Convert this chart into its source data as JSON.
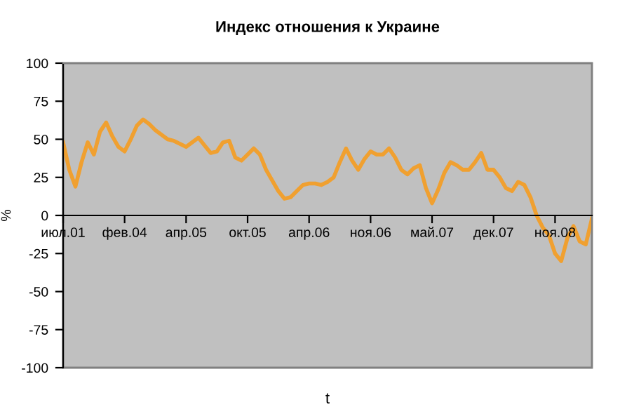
{
  "chart_data": {
    "type": "line",
    "title": "Индекс отношения к Украине",
    "xlabel": "t",
    "ylabel": "%",
    "categories": [
      "июл.01",
      null,
      null,
      null,
      null,
      null,
      null,
      null,
      null,
      null,
      "фев.04",
      null,
      null,
      null,
      null,
      null,
      null,
      null,
      null,
      null,
      "апр.05",
      null,
      null,
      null,
      null,
      null,
      null,
      null,
      null,
      null,
      "окт.05",
      null,
      null,
      null,
      null,
      null,
      null,
      null,
      null,
      null,
      "апр.06",
      null,
      null,
      null,
      null,
      null,
      null,
      null,
      null,
      null,
      "ноя.06",
      null,
      null,
      null,
      null,
      null,
      null,
      null,
      null,
      null,
      "май.07",
      null,
      null,
      null,
      null,
      null,
      null,
      null,
      null,
      null,
      "дек.07",
      null,
      null,
      null,
      null,
      null,
      null,
      null,
      null,
      null,
      "ноя.08",
      null,
      null,
      null,
      null,
      null,
      null
    ],
    "series": [
      {
        "color": "#f0a030",
        "values": [
          48,
          30,
          19,
          35,
          48,
          40,
          55,
          61,
          52,
          45,
          42,
          50,
          59,
          63,
          60,
          56,
          53,
          50,
          49,
          47,
          45,
          48,
          51,
          46,
          41,
          42,
          48,
          49,
          38,
          36,
          40,
          44,
          40,
          30,
          23,
          16,
          11,
          12,
          16,
          20,
          21,
          21,
          20,
          22,
          25,
          35,
          44,
          36,
          30,
          37,
          42,
          40,
          40,
          44,
          38,
          30,
          27,
          31,
          33,
          18,
          8,
          17,
          28,
          35,
          33,
          30,
          30,
          35,
          41,
          30,
          30,
          25,
          18,
          16,
          22,
          20,
          12,
          0,
          -8,
          -13,
          -25,
          -30,
          -15,
          -7,
          -17,
          -19,
          -2
        ]
      }
    ],
    "ylim": [
      -100,
      100
    ],
    "yticks": [
      -100,
      -75,
      -50,
      -25,
      0,
      25,
      50,
      75,
      100
    ],
    "grid": false,
    "legend": false,
    "marker": "none",
    "line_style": "solid"
  }
}
